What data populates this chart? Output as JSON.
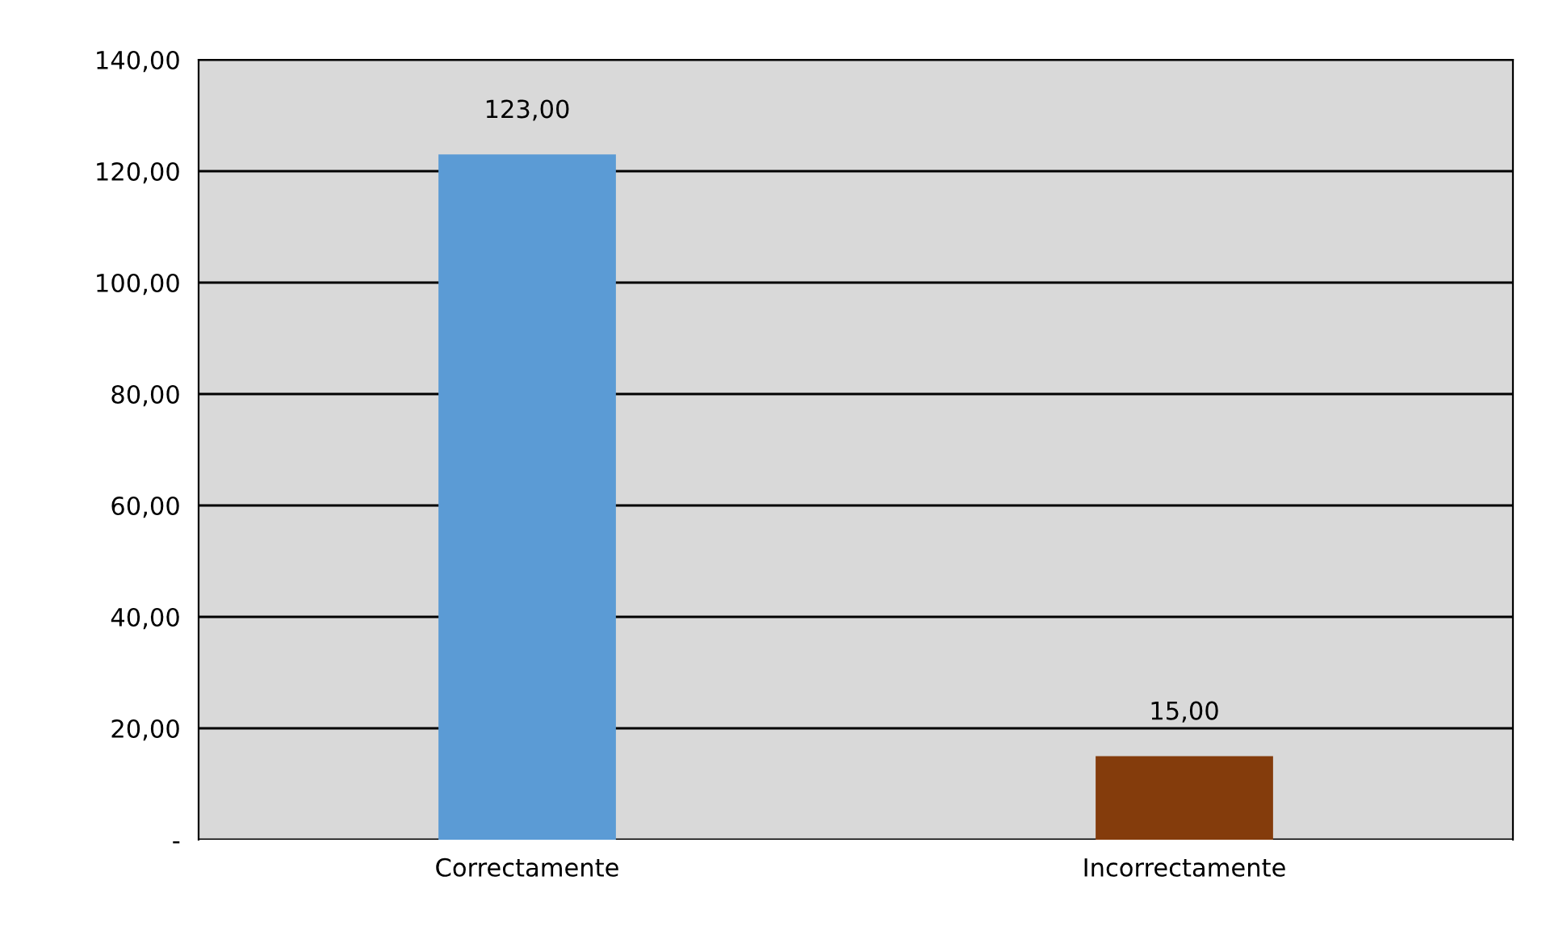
{
  "chart_data": {
    "type": "bar",
    "categories": [
      "Correctamente",
      "Incorrectamente"
    ],
    "values": [
      123,
      15
    ],
    "colors": [
      "#5b9bd5",
      "#843c0c"
    ],
    "value_labels": [
      "123,00",
      "15,00"
    ],
    "ylim": [
      0,
      140
    ],
    "yticks": [
      {
        "value": 0,
        "label": "-"
      },
      {
        "value": 20,
        "label": "20,00"
      },
      {
        "value": 40,
        "label": "40,00"
      },
      {
        "value": 60,
        "label": "60,00"
      },
      {
        "value": 80,
        "label": "80,00"
      },
      {
        "value": 100,
        "label": "100,00"
      },
      {
        "value": 120,
        "label": "120,00"
      },
      {
        "value": 140,
        "label": "140,00"
      }
    ],
    "grid": "y"
  }
}
